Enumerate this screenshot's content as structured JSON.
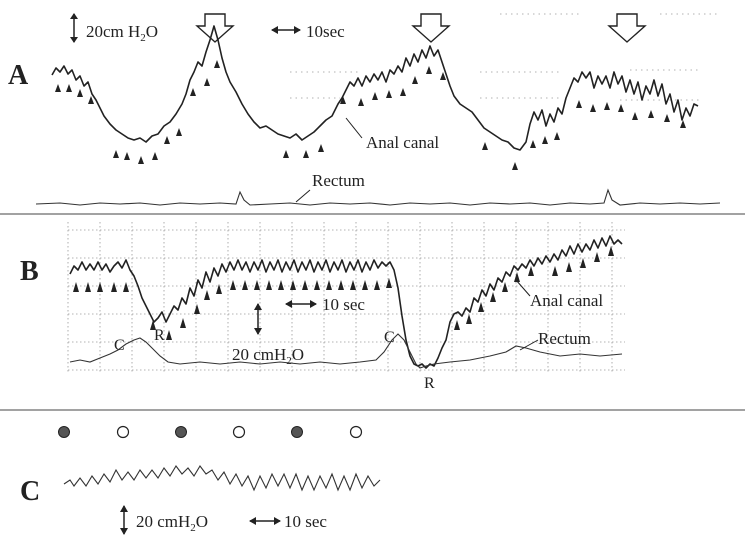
{
  "panel_a": {
    "label": "A",
    "pressure_scale": "20cm H",
    "pressure_sub": "2",
    "pressure_tail": "O",
    "time_scale": "10sec",
    "anal_label": "Anal canal",
    "rectum_label": "Rectum"
  },
  "panel_b": {
    "label": "B",
    "time_scale": "10 sec",
    "pressure_scale": "20 cmH",
    "pressure_sub": "2",
    "pressure_tail": "O",
    "anal_label": "Anal canal",
    "rectum_label": "Rectum",
    "marker_c": "C",
    "marker_r": "R"
  },
  "panel_c": {
    "label": "C",
    "pressure_scale": "20 cmH",
    "pressure_sub": "2",
    "pressure_tail": "O",
    "time_scale": "10 sec"
  },
  "colors": {
    "line": "#222222",
    "grid": "#9a9a9a",
    "arrow_fill": "#ffffff"
  }
}
